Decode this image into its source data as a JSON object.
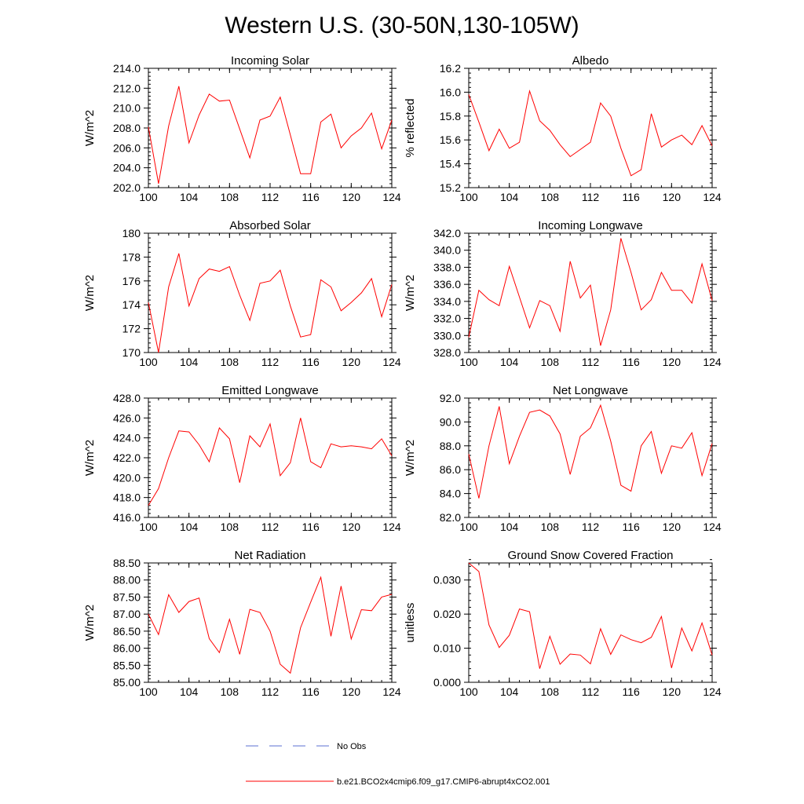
{
  "figure": {
    "title": "Western U.S. (30-50N,130-105W)",
    "series_color": "#ff0000",
    "obs_color": "#5b6fd0"
  },
  "legend": {
    "items": [
      {
        "label": "No Obs",
        "style": "dashed",
        "color": "#5b6fd0"
      },
      {
        "label": "b.e21.BCO2x4cmip6.f09_g17.CMIP6-abrupt4xCO2.001",
        "style": "solid",
        "color": "#ff0000"
      }
    ]
  },
  "chart_data": [
    {
      "id": "incoming-solar",
      "type": "line",
      "title": "Incoming Solar",
      "xlabel": "",
      "ylabel": "W/m^2",
      "xlim": [
        100,
        124
      ],
      "ylim": [
        202.0,
        214.0
      ],
      "xticks": [
        100,
        104,
        108,
        112,
        116,
        120,
        124
      ],
      "xtick_labels": [
        "100",
        "104",
        "108",
        "112",
        "116",
        "120",
        "124"
      ],
      "yticks": [
        202,
        204,
        206,
        208,
        210,
        212,
        214
      ],
      "ytick_labels": [
        "202.0",
        "204.0",
        "206.0",
        "208.0",
        "210.0",
        "212.0",
        "214.0"
      ],
      "x": [
        100,
        101,
        102,
        103,
        104,
        105,
        106,
        107,
        108,
        109,
        110,
        111,
        112,
        113,
        114,
        115,
        116,
        117,
        118,
        119,
        120,
        121,
        122,
        123,
        124
      ],
      "series": [
        {
          "name": "b.e21.BCO2x4cmip6.f09_g17.CMIP6-abrupt4xCO2.001",
          "values": [
            208.1,
            202.4,
            208.2,
            212.2,
            206.5,
            209.3,
            211.4,
            210.7,
            210.8,
            207.9,
            205.0,
            208.8,
            209.2,
            211.1,
            207.3,
            203.4,
            203.4,
            208.6,
            209.4,
            206.0,
            207.2,
            208.0,
            209.5,
            205.9,
            208.8
          ]
        }
      ]
    },
    {
      "id": "albedo",
      "type": "line",
      "title": "Albedo",
      "xlabel": "",
      "ylabel": "% reflected",
      "xlim": [
        100,
        124
      ],
      "ylim": [
        15.2,
        16.2
      ],
      "xticks": [
        100,
        104,
        108,
        112,
        116,
        120,
        124
      ],
      "xtick_labels": [
        "100",
        "104",
        "108",
        "112",
        "116",
        "120",
        "124"
      ],
      "yticks": [
        15.2,
        15.4,
        15.6,
        15.8,
        16.0,
        16.2
      ],
      "ytick_labels": [
        "15.2",
        "15.4",
        "15.6",
        "15.8",
        "16.0",
        "16.2"
      ],
      "x": [
        100,
        101,
        102,
        103,
        104,
        105,
        106,
        107,
        108,
        109,
        110,
        111,
        112,
        113,
        114,
        115,
        116,
        117,
        118,
        119,
        120,
        121,
        122,
        123,
        124
      ],
      "series": [
        {
          "name": "b.e21.BCO2x4cmip6.f09_g17.CMIP6-abrupt4xCO2.001",
          "values": [
            15.98,
            15.75,
            15.51,
            15.69,
            15.53,
            15.58,
            16.01,
            15.76,
            15.68,
            15.56,
            15.46,
            15.52,
            15.58,
            15.91,
            15.8,
            15.53,
            15.3,
            15.35,
            15.82,
            15.54,
            15.6,
            15.64,
            15.56,
            15.72,
            15.55
          ]
        }
      ]
    },
    {
      "id": "absorbed-solar",
      "type": "line",
      "title": "Absorbed Solar",
      "xlabel": "",
      "ylabel": "W/m^2",
      "xlim": [
        100,
        124
      ],
      "ylim": [
        170,
        180
      ],
      "xticks": [
        100,
        104,
        108,
        112,
        116,
        120,
        124
      ],
      "xtick_labels": [
        "100",
        "104",
        "108",
        "112",
        "116",
        "120",
        "124"
      ],
      "yticks": [
        170,
        172,
        174,
        176,
        178,
        180
      ],
      "ytick_labels": [
        "170",
        "172",
        "174",
        "176",
        "178",
        "180"
      ],
      "x": [
        100,
        101,
        102,
        103,
        104,
        105,
        106,
        107,
        108,
        109,
        110,
        111,
        112,
        113,
        114,
        115,
        116,
        117,
        118,
        119,
        120,
        121,
        122,
        123,
        124
      ],
      "series": [
        {
          "name": "b.e21.BCO2x4cmip6.f09_g17.CMIP6-abrupt4xCO2.001",
          "values": [
            174.2,
            170.0,
            175.5,
            178.3,
            173.9,
            176.2,
            177.0,
            176.8,
            177.2,
            174.8,
            172.7,
            175.8,
            176.0,
            176.9,
            173.9,
            171.3,
            171.5,
            176.1,
            175.5,
            173.5,
            174.2,
            175.0,
            176.2,
            173.0,
            175.7
          ]
        }
      ]
    },
    {
      "id": "incoming-longwave",
      "type": "line",
      "title": "Incoming Longwave",
      "xlabel": "",
      "ylabel": "W/m^2",
      "xlim": [
        100,
        124
      ],
      "ylim": [
        328.0,
        342.0
      ],
      "xticks": [
        100,
        104,
        108,
        112,
        116,
        120,
        124
      ],
      "xtick_labels": [
        "100",
        "104",
        "108",
        "112",
        "116",
        "120",
        "124"
      ],
      "yticks": [
        328,
        330,
        332,
        334,
        336,
        338,
        340,
        342
      ],
      "ytick_labels": [
        "328.0",
        "330.0",
        "332.0",
        "334.0",
        "336.0",
        "338.0",
        "340.0",
        "342.0"
      ],
      "x": [
        100,
        101,
        102,
        103,
        104,
        105,
        106,
        107,
        108,
        109,
        110,
        111,
        112,
        113,
        114,
        115,
        116,
        117,
        118,
        119,
        120,
        121,
        122,
        123,
        124
      ],
      "series": [
        {
          "name": "b.e21.BCO2x4cmip6.f09_g17.CMIP6-abrupt4xCO2.001",
          "values": [
            329.8,
            335.3,
            334.2,
            333.5,
            338.1,
            334.5,
            330.9,
            334.1,
            333.5,
            330.5,
            338.7,
            334.4,
            335.9,
            328.8,
            333.0,
            341.4,
            337.4,
            333.0,
            334.2,
            337.4,
            335.3,
            335.3,
            333.8,
            338.4,
            334.1
          ]
        }
      ]
    },
    {
      "id": "emitted-longwave",
      "type": "line",
      "title": "Emitted Longwave",
      "xlabel": "",
      "ylabel": "W/m^2",
      "xlim": [
        100,
        124
      ],
      "ylim": [
        416.0,
        428.0
      ],
      "xticks": [
        100,
        104,
        108,
        112,
        116,
        120,
        124
      ],
      "xtick_labels": [
        "100",
        "104",
        "108",
        "112",
        "116",
        "120",
        "124"
      ],
      "yticks": [
        416,
        418,
        420,
        422,
        424,
        426,
        428
      ],
      "ytick_labels": [
        "416.0",
        "418.0",
        "420.0",
        "422.0",
        "424.0",
        "426.0",
        "428.0"
      ],
      "x": [
        100,
        101,
        102,
        103,
        104,
        105,
        106,
        107,
        108,
        109,
        110,
        111,
        112,
        113,
        114,
        115,
        116,
        117,
        118,
        119,
        120,
        121,
        122,
        123,
        124
      ],
      "series": [
        {
          "name": "b.e21.BCO2x4cmip6.f09_g17.CMIP6-abrupt4xCO2.001",
          "values": [
            417.2,
            418.9,
            422.0,
            424.7,
            424.6,
            423.3,
            421.6,
            425.0,
            423.9,
            419.5,
            424.2,
            423.1,
            425.4,
            420.2,
            421.5,
            426.0,
            421.6,
            421.0,
            423.4,
            423.1,
            423.2,
            423.1,
            422.9,
            423.9,
            422.2
          ]
        }
      ]
    },
    {
      "id": "net-longwave",
      "type": "line",
      "title": "Net Longwave",
      "xlabel": "",
      "ylabel": "W/m^2",
      "xlim": [
        100,
        124
      ],
      "ylim": [
        82.0,
        92.0
      ],
      "xticks": [
        100,
        104,
        108,
        112,
        116,
        120,
        124
      ],
      "xtick_labels": [
        "100",
        "104",
        "108",
        "112",
        "116",
        "120",
        "124"
      ],
      "yticks": [
        82,
        84,
        86,
        88,
        90,
        92
      ],
      "ytick_labels": [
        "82.0",
        "84.0",
        "86.0",
        "88.0",
        "90.0",
        "92.0"
      ],
      "x": [
        100,
        101,
        102,
        103,
        104,
        105,
        106,
        107,
        108,
        109,
        110,
        111,
        112,
        113,
        114,
        115,
        116,
        117,
        118,
        119,
        120,
        121,
        122,
        123,
        124
      ],
      "series": [
        {
          "name": "b.e21.BCO2x4cmip6.f09_g17.CMIP6-abrupt4xCO2.001",
          "values": [
            87.3,
            83.6,
            88.0,
            91.3,
            86.5,
            88.8,
            90.8,
            91.0,
            90.5,
            89.0,
            85.6,
            88.8,
            89.5,
            91.4,
            88.4,
            84.7,
            84.2,
            88.0,
            89.2,
            85.7,
            88.0,
            87.8,
            89.1,
            85.5,
            88.2
          ]
        }
      ]
    },
    {
      "id": "net-radiation",
      "type": "line",
      "title": "Net Radiation",
      "xlabel": "",
      "ylabel": "W/m^2",
      "xlim": [
        100,
        124
      ],
      "ylim": [
        85.0,
        88.5
      ],
      "xticks": [
        100,
        104,
        108,
        112,
        116,
        120,
        124
      ],
      "xtick_labels": [
        "100",
        "104",
        "108",
        "112",
        "116",
        "120",
        "124"
      ],
      "yticks": [
        85.0,
        85.5,
        86.0,
        86.5,
        87.0,
        87.5,
        88.0,
        88.5
      ],
      "ytick_labels": [
        "85.00",
        "85.50",
        "86.00",
        "86.50",
        "87.00",
        "87.50",
        "88.00",
        "88.50"
      ],
      "x": [
        100,
        101,
        102,
        103,
        104,
        105,
        106,
        107,
        108,
        109,
        110,
        111,
        112,
        113,
        114,
        115,
        116,
        117,
        118,
        119,
        120,
        121,
        122,
        123,
        124
      ],
      "series": [
        {
          "name": "b.e21.BCO2x4cmip6.f09_g17.CMIP6-abrupt4xCO2.001",
          "values": [
            87.0,
            86.4,
            87.57,
            87.05,
            87.37,
            87.47,
            86.28,
            85.87,
            86.85,
            85.82,
            87.14,
            87.05,
            86.5,
            85.53,
            85.27,
            86.6,
            87.35,
            88.08,
            86.35,
            87.82,
            86.27,
            87.13,
            87.1,
            87.5,
            87.58
          ]
        }
      ]
    },
    {
      "id": "ground-snow-covered-fraction",
      "type": "line",
      "title": "Ground Snow Covered Fraction",
      "xlabel": "",
      "ylabel": "unitless",
      "xlim": [
        100,
        124
      ],
      "ylim": [
        0.0,
        0.035
      ],
      "xticks": [
        100,
        104,
        108,
        112,
        116,
        120,
        124
      ],
      "xtick_labels": [
        "100",
        "104",
        "108",
        "112",
        "116",
        "120",
        "124"
      ],
      "yticks": [
        0.0,
        0.01,
        0.02,
        0.03
      ],
      "ytick_labels": [
        "0.000",
        "0.010",
        "0.020",
        "0.030"
      ],
      "x": [
        100,
        101,
        102,
        103,
        104,
        105,
        106,
        107,
        108,
        109,
        110,
        111,
        112,
        113,
        114,
        115,
        116,
        117,
        118,
        119,
        120,
        121,
        122,
        123,
        124
      ],
      "series": [
        {
          "name": "b.e21.BCO2x4cmip6.f09_g17.CMIP6-abrupt4xCO2.001",
          "values": [
            0.035,
            0.0325,
            0.0168,
            0.0102,
            0.0138,
            0.0215,
            0.0207,
            0.004,
            0.0135,
            0.0053,
            0.0083,
            0.008,
            0.0054,
            0.0157,
            0.0082,
            0.0139,
            0.0125,
            0.0116,
            0.0132,
            0.0193,
            0.0042,
            0.0159,
            0.0092,
            0.0174,
            0.008
          ]
        }
      ]
    }
  ]
}
